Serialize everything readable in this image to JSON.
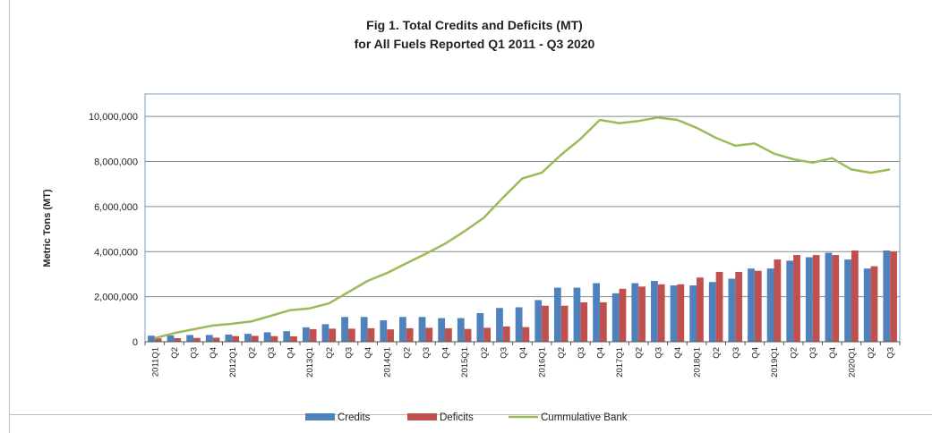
{
  "chart_data": {
    "type": "bar",
    "title_lines": [
      "Fig 1. Total Credits and Deficits (MT)",
      "for All Fuels Reported Q1 2011 - Q3 2020"
    ],
    "xlabel": "",
    "ylabel": "Metric Tons (MT)",
    "ylim": [
      0,
      11000000
    ],
    "yticks": [
      0,
      2000000,
      4000000,
      6000000,
      8000000,
      10000000
    ],
    "ytick_labels": [
      "0",
      "2,000,000",
      "4,000,000",
      "6,000,000",
      "8,000,000",
      "10,000,000"
    ],
    "grid": true,
    "legend_position": "bottom",
    "categories": [
      "2011Q1",
      "Q2",
      "Q3",
      "Q4",
      "2012Q1",
      "Q2",
      "Q3",
      "Q4",
      "2013Q1",
      "Q2",
      "Q3",
      "Q4",
      "2014Q1",
      "Q2",
      "Q3",
      "Q4",
      "2015Q1",
      "Q2",
      "Q3",
      "Q4",
      "2016Q1",
      "Q2",
      "Q3",
      "Q4",
      "2017Q1",
      "Q2",
      "Q3",
      "Q4",
      "2018Q1",
      "Q2",
      "Q3",
      "Q4",
      "2019Q1",
      "Q2",
      "Q3",
      "Q4",
      "2020Q1",
      "Q2",
      "Q3"
    ],
    "series": [
      {
        "name": "Credits",
        "kind": "bar",
        "color": "#4f81bd",
        "values": [
          270000,
          280000,
          300000,
          300000,
          320000,
          350000,
          420000,
          470000,
          640000,
          780000,
          1100000,
          1100000,
          950000,
          1100000,
          1100000,
          1050000,
          1050000,
          1270000,
          1500000,
          1530000,
          1850000,
          2400000,
          2400000,
          2600000,
          2150000,
          2600000,
          2700000,
          2500000,
          2500000,
          2650000,
          2800000,
          3250000,
          3250000,
          3600000,
          3750000,
          3950000,
          3650000,
          3250000,
          4050000
        ]
      },
      {
        "name": "Deficits",
        "kind": "bar",
        "color": "#c0504d",
        "values": [
          150000,
          160000,
          170000,
          180000,
          250000,
          260000,
          250000,
          240000,
          560000,
          580000,
          580000,
          600000,
          550000,
          600000,
          620000,
          600000,
          570000,
          620000,
          680000,
          650000,
          1600000,
          1600000,
          1750000,
          1750000,
          2350000,
          2450000,
          2550000,
          2550000,
          2850000,
          3100000,
          3100000,
          3150000,
          3650000,
          3850000,
          3850000,
          3850000,
          4050000,
          3350000,
          4000000
        ]
      },
      {
        "name": "Cummulative Bank",
        "kind": "line",
        "color": "#9bbb59",
        "values": [
          160000,
          380000,
          550000,
          720000,
          800000,
          900000,
          1150000,
          1400000,
          1480000,
          1700000,
          2200000,
          2700000,
          3050000,
          3480000,
          3900000,
          4350000,
          4900000,
          5500000,
          6400000,
          7250000,
          7500000,
          8300000,
          9000000,
          9850000,
          9700000,
          9800000,
          9950000,
          9850000,
          9500000,
          9050000,
          8700000,
          8800000,
          8350000,
          8100000,
          7950000,
          8150000,
          7650000,
          7500000,
          7650000
        ]
      }
    ]
  }
}
